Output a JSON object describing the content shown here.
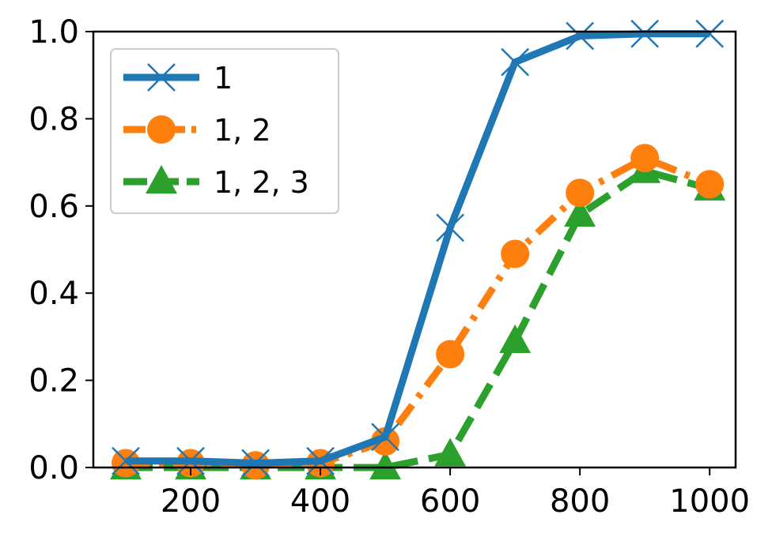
{
  "chart_data": {
    "type": "line",
    "title": "",
    "xlabel": "",
    "ylabel": "",
    "x": [
      100,
      200,
      300,
      400,
      500,
      600,
      700,
      800,
      900,
      1000
    ],
    "xlim": [
      50,
      1040
    ],
    "ylim": [
      0.0,
      1.0
    ],
    "x_ticks": [
      200,
      400,
      600,
      800,
      1000
    ],
    "x_tick_labels": [
      "200",
      "400",
      "600",
      "800",
      "1000"
    ],
    "y_ticks": [
      0.0,
      0.2,
      0.4,
      0.6,
      0.8,
      1.0
    ],
    "y_tick_labels": [
      "0.0",
      "0.2",
      "0.4",
      "0.6",
      "0.8",
      "1.0"
    ],
    "grid": false,
    "legend_position": "top-left",
    "series": [
      {
        "name": "1",
        "color": "#1f77b4",
        "marker": "x",
        "line_style": "solid",
        "values": [
          0.015,
          0.015,
          0.01,
          0.015,
          0.07,
          0.55,
          0.93,
          0.99,
          0.995,
          0.995
        ]
      },
      {
        "name": "1, 2",
        "color": "#ff7f0e",
        "marker": "circle",
        "line_style": "dashdot",
        "values": [
          0.01,
          0.01,
          0.005,
          0.01,
          0.06,
          0.26,
          0.49,
          0.63,
          0.71,
          0.65
        ]
      },
      {
        "name": "1, 2, 3",
        "color": "#2ca02c",
        "marker": "triangle",
        "line_style": "dashed",
        "values": [
          0.0,
          0.0,
          0.0,
          0.0,
          0.0,
          0.03,
          0.29,
          0.58,
          0.68,
          0.64
        ]
      }
    ]
  }
}
